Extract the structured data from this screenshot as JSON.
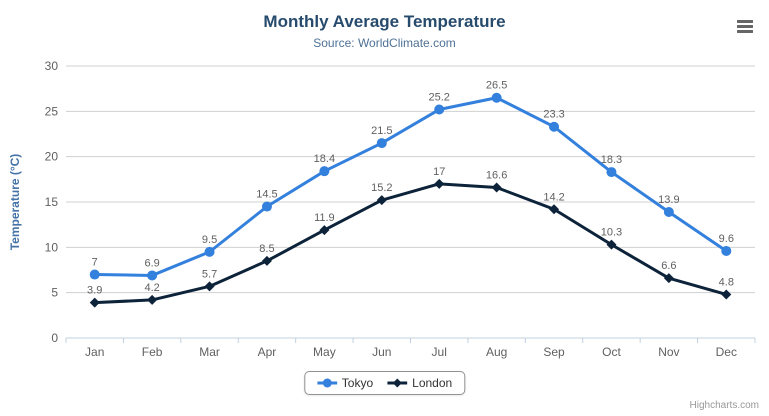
{
  "header": {
    "title": "Monthly Average Temperature",
    "subtitle": "Source: WorldClimate.com"
  },
  "chart_data": {
    "type": "line",
    "categories": [
      "Jan",
      "Feb",
      "Mar",
      "Apr",
      "May",
      "Jun",
      "Jul",
      "Aug",
      "Sep",
      "Oct",
      "Nov",
      "Dec"
    ],
    "series": [
      {
        "name": "Tokyo",
        "color": "#3380dd",
        "marker": "circle",
        "values": [
          7,
          6.9,
          9.5,
          14.5,
          18.4,
          21.5,
          25.2,
          26.5,
          23.3,
          18.3,
          13.9,
          9.6
        ]
      },
      {
        "name": "London",
        "color": "#0d233a",
        "marker": "diamond",
        "values": [
          3.9,
          4.2,
          5.7,
          8.5,
          11.9,
          15.2,
          17,
          16.6,
          14.2,
          10.3,
          6.6,
          4.8
        ]
      }
    ],
    "title": "Monthly Average Temperature",
    "subtitle": "Source: WorldClimate.com",
    "xlabel": "",
    "ylabel": "Temperature (°C)",
    "ylim": [
      0,
      30
    ],
    "yticks": [
      0,
      5,
      10,
      15,
      20,
      25,
      30
    ],
    "grid": true,
    "data_labels": true,
    "legend_position": "bottom"
  },
  "credits": {
    "label": "Highcharts.com"
  },
  "colors": {
    "title": "#274b6d",
    "subtitle": "#4f7196",
    "y_axis_title": "#4572a7",
    "axis_label": "#606060",
    "data_label": "#606060",
    "gridline": "#d0d0d0",
    "axis_line": "#c0d0e0",
    "legend_text": "#333333",
    "menu_icon": "#666666",
    "credits_text": "#999999"
  }
}
